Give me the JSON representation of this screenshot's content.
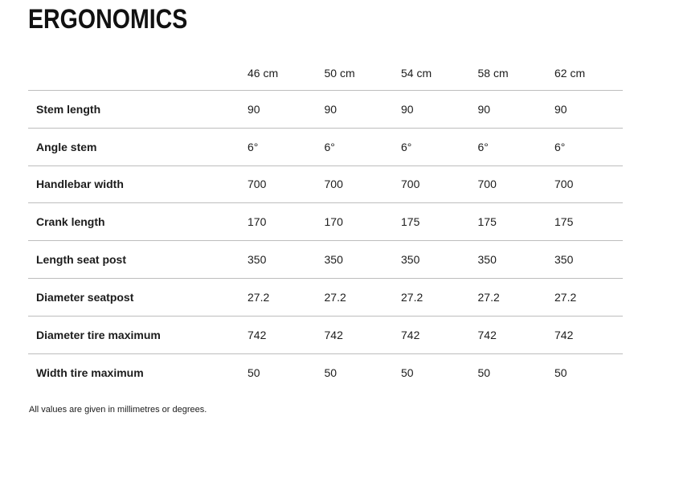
{
  "section": {
    "title": "ERGONOMICS",
    "footnote": "All values are given in millimetres or degrees."
  },
  "table": {
    "columns": [
      "46 cm",
      "50 cm",
      "54 cm",
      "58 cm",
      "62 cm"
    ],
    "rows": [
      {
        "label": "Stem length",
        "values": [
          "90",
          "90",
          "90",
          "90",
          "90"
        ]
      },
      {
        "label": "Angle stem",
        "values": [
          "6°",
          "6°",
          "6°",
          "6°",
          "6°"
        ]
      },
      {
        "label": "Handlebar width",
        "values": [
          "700",
          "700",
          "700",
          "700",
          "700"
        ]
      },
      {
        "label": "Crank length",
        "values": [
          "170",
          "170",
          "175",
          "175",
          "175"
        ]
      },
      {
        "label": "Length seat post",
        "values": [
          "350",
          "350",
          "350",
          "350",
          "350"
        ]
      },
      {
        "label": "Diameter seatpost",
        "values": [
          "27.2",
          "27.2",
          "27.2",
          "27.2",
          "27.2"
        ]
      },
      {
        "label": "Diameter tire maximum",
        "values": [
          "742",
          "742",
          "742",
          "742",
          "742"
        ]
      },
      {
        "label": "Width tire maximum",
        "values": [
          "50",
          "50",
          "50",
          "50",
          "50"
        ]
      }
    ]
  },
  "colors": {
    "text": "#1c1c1c",
    "title": "#111111",
    "divider": "#bdbdbd",
    "background": "#ffffff"
  }
}
